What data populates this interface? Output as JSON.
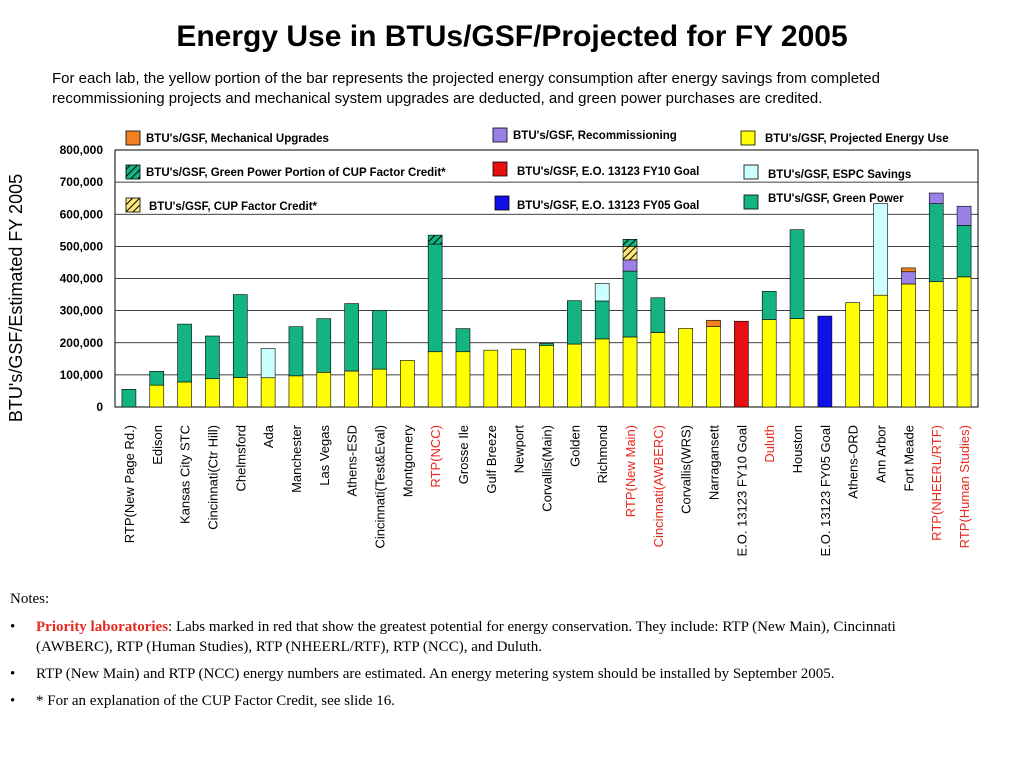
{
  "title": "Energy Use in BTUs/GSF/Projected for FY 2005",
  "description": "For each lab, the yellow portion of the bar represents the projected energy consumption after energy savings from completed recommissioning projects and mechanical system upgrades are deducted, and green power purchases are credited.",
  "notes": {
    "header": "Notes:",
    "bullet_char": "•",
    "item1_label": "Priority laboratories",
    "item1_text": ": Labs marked in red that show the greatest potential for energy conservation. They include: RTP (New Main), Cincinnati (AWBERC), RTP (Human Studies), RTP (NHEERL/RTF), RTP (NCC), and Duluth.",
    "item2_text": "RTP (New Main) and RTP (NCC) energy numbers are estimated. An energy metering system should be installed by September 2005.",
    "item3_text": "* For an explanation of the CUP Factor Credit, see slide 16."
  },
  "colors": {
    "projected": "#ffff00",
    "green_power": "#13b383",
    "espc": "#ccffff",
    "recommissioning": "#9b80e8",
    "mechanical": "#f08020",
    "cup_factor": "#ffe87a",
    "green_cup": "#13b383",
    "goal10": "#e81010",
    "goal05": "#1010e8",
    "priority_label": "#e8281e"
  },
  "chart_data": {
    "type": "bar",
    "stacked": true,
    "ylabel": "BTU's/GSF/Estimated FY 2005",
    "ylim": [
      0,
      800000
    ],
    "yticks": [
      0,
      100000,
      200000,
      300000,
      400000,
      500000,
      600000,
      700000,
      800000
    ],
    "ytick_labels": [
      "0",
      "100,000",
      "200,000",
      "300,000",
      "400,000",
      "500,000",
      "600,000",
      "700,000",
      "800,000"
    ],
    "grid": true,
    "legend_position": "top",
    "series": [
      {
        "key": "projected",
        "name": "BTU's/GSF, Projected Energy Use"
      },
      {
        "key": "green_power",
        "name": "BTU's/GSF, Green Power"
      },
      {
        "key": "espc",
        "name": "BTU's/GSF, ESPC Savings"
      },
      {
        "key": "recommissioning",
        "name": "BTU's/GSF, Recommissioning"
      },
      {
        "key": "mechanical",
        "name": "BTU's/GSF, Mechanical Upgrades"
      },
      {
        "key": "cup_factor",
        "name": "BTU's/GSF, CUP Factor Credit*"
      },
      {
        "key": "green_cup",
        "name": "BTU's/GSF, Green Power Portion of CUP Factor Credit*"
      },
      {
        "key": "goal10",
        "name": "BTU's/GSF, E.O. 13123 FY10 Goal"
      },
      {
        "key": "goal05",
        "name": "BTU's/GSF, E.O. 13123 FY05 Goal"
      }
    ],
    "categories": [
      {
        "name": "RTP(New Page Rd.)",
        "priority": false,
        "segments": [
          {
            "s": "green_power",
            "v": 55000
          }
        ]
      },
      {
        "name": "Edison",
        "priority": false,
        "segments": [
          {
            "s": "projected",
            "v": 68000
          },
          {
            "s": "green_power",
            "v": 43000
          }
        ]
      },
      {
        "name": "Kansas City STC",
        "priority": false,
        "segments": [
          {
            "s": "projected",
            "v": 78000
          },
          {
            "s": "green_power",
            "v": 180000
          }
        ]
      },
      {
        "name": "Cincinnati(Ctr Hill)",
        "priority": false,
        "segments": [
          {
            "s": "projected",
            "v": 88000
          },
          {
            "s": "green_power",
            "v": 133000
          }
        ]
      },
      {
        "name": "Chelmsford",
        "priority": false,
        "segments": [
          {
            "s": "projected",
            "v": 92000
          },
          {
            "s": "green_power",
            "v": 258000
          }
        ]
      },
      {
        "name": "Ada",
        "priority": false,
        "segments": [
          {
            "s": "projected",
            "v": 91000
          },
          {
            "s": "espc",
            "v": 91000
          }
        ]
      },
      {
        "name": "Manchester",
        "priority": false,
        "segments": [
          {
            "s": "projected",
            "v": 97000
          },
          {
            "s": "green_power",
            "v": 153000
          }
        ]
      },
      {
        "name": "Las Vegas",
        "priority": false,
        "segments": [
          {
            "s": "projected",
            "v": 108000
          },
          {
            "s": "green_power",
            "v": 167000
          }
        ]
      },
      {
        "name": "Athens-ESD",
        "priority": false,
        "segments": [
          {
            "s": "projected",
            "v": 112000
          },
          {
            "s": "green_power",
            "v": 210000
          }
        ]
      },
      {
        "name": "Cincinnati(Test&Eval)",
        "priority": false,
        "segments": [
          {
            "s": "projected",
            "v": 118000
          },
          {
            "s": "green_power",
            "v": 182000
          }
        ]
      },
      {
        "name": "Montgomery",
        "priority": false,
        "segments": [
          {
            "s": "projected",
            "v": 145000
          }
        ]
      },
      {
        "name": "RTP(NCC)",
        "priority": true,
        "segments": [
          {
            "s": "projected",
            "v": 172000
          },
          {
            "s": "green_power",
            "v": 335000
          },
          {
            "s": "green_cup",
            "v": 28000
          }
        ]
      },
      {
        "name": "Grosse Ile",
        "priority": false,
        "segments": [
          {
            "s": "projected",
            "v": 172000
          },
          {
            "s": "green_power",
            "v": 72000
          }
        ]
      },
      {
        "name": "Gulf Breeze",
        "priority": false,
        "segments": [
          {
            "s": "projected",
            "v": 177000
          }
        ]
      },
      {
        "name": "Newport",
        "priority": false,
        "segments": [
          {
            "s": "projected",
            "v": 180000
          }
        ]
      },
      {
        "name": "Corvallis(Main)",
        "priority": false,
        "segments": [
          {
            "s": "projected",
            "v": 192000
          },
          {
            "s": "green_power",
            "v": 6000
          }
        ]
      },
      {
        "name": "Golden",
        "priority": false,
        "segments": [
          {
            "s": "projected",
            "v": 196000
          },
          {
            "s": "green_power",
            "v": 135000
          }
        ]
      },
      {
        "name": "Richmond",
        "priority": false,
        "segments": [
          {
            "s": "projected",
            "v": 212000
          },
          {
            "s": "green_power",
            "v": 118000
          },
          {
            "s": "espc",
            "v": 55000
          }
        ]
      },
      {
        "name": "RTP(New Main)",
        "priority": true,
        "segments": [
          {
            "s": "projected",
            "v": 218000
          },
          {
            "s": "green_power",
            "v": 205000
          },
          {
            "s": "recommissioning",
            "v": 35000
          },
          {
            "s": "cup_factor",
            "v": 42000
          },
          {
            "s": "green_cup",
            "v": 22000
          }
        ]
      },
      {
        "name": "Cincinnati(AWBERC)",
        "priority": true,
        "segments": [
          {
            "s": "projected",
            "v": 232000
          },
          {
            "s": "green_power",
            "v": 108000
          }
        ]
      },
      {
        "name": "Corvallis(WRS)",
        "priority": false,
        "segments": [
          {
            "s": "projected",
            "v": 245000
          }
        ]
      },
      {
        "name": "Narragansett",
        "priority": false,
        "segments": [
          {
            "s": "projected",
            "v": 250000
          },
          {
            "s": "mechanical",
            "v": 20000
          }
        ]
      },
      {
        "name": "E.O. 13123 FY10 Goal",
        "priority": false,
        "segments": [
          {
            "s": "goal10",
            "v": 267000
          }
        ]
      },
      {
        "name": "Duluth",
        "priority": true,
        "segments": [
          {
            "s": "projected",
            "v": 272000
          },
          {
            "s": "green_power",
            "v": 88000
          }
        ]
      },
      {
        "name": "Houston",
        "priority": false,
        "segments": [
          {
            "s": "projected",
            "v": 275000
          },
          {
            "s": "green_power",
            "v": 277000
          }
        ]
      },
      {
        "name": "E.O. 13123 FY05 Goal",
        "priority": false,
        "segments": [
          {
            "s": "goal05",
            "v": 283000
          }
        ]
      },
      {
        "name": "Athens-ORD",
        "priority": false,
        "segments": [
          {
            "s": "projected",
            "v": 325000
          }
        ]
      },
      {
        "name": "Ann Arbor",
        "priority": false,
        "segments": [
          {
            "s": "projected",
            "v": 348000
          },
          {
            "s": "espc",
            "v": 285000
          }
        ]
      },
      {
        "name": "Fort Meade",
        "priority": false,
        "segments": [
          {
            "s": "projected",
            "v": 383000
          },
          {
            "s": "recommissioning",
            "v": 38000
          },
          {
            "s": "mechanical",
            "v": 12000
          }
        ]
      },
      {
        "name": "RTP(NHEERL/RTF)",
        "priority": true,
        "segments": [
          {
            "s": "projected",
            "v": 390000
          },
          {
            "s": "green_power",
            "v": 243000
          },
          {
            "s": "recommissioning",
            "v": 33000
          }
        ]
      },
      {
        "name": "RTP(Human Studies)",
        "priority": true,
        "segments": [
          {
            "s": "projected",
            "v": 405000
          },
          {
            "s": "green_power",
            "v": 160000
          },
          {
            "s": "recommissioning",
            "v": 60000
          }
        ]
      }
    ]
  }
}
